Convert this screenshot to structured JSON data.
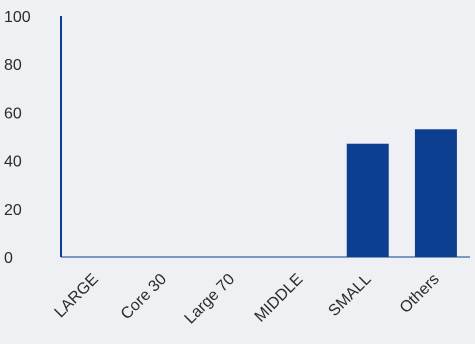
{
  "chart_data": {
    "type": "bar",
    "categories": [
      "LARGE",
      "Core 30",
      "Large 70",
      "MIDDLE",
      "SMALL",
      "Others"
    ],
    "values": [
      0,
      0,
      0,
      0,
      47,
      53
    ],
    "ylim": [
      0,
      100
    ],
    "yticks": [
      "0",
      "20",
      "40",
      "60",
      "80",
      "100"
    ],
    "grid": false,
    "legend": "none",
    "colors": {
      "bar": "#0d3f91",
      "axis": "#0d3f91",
      "background": "#eef0f3",
      "text": "#2b2b2b"
    }
  }
}
